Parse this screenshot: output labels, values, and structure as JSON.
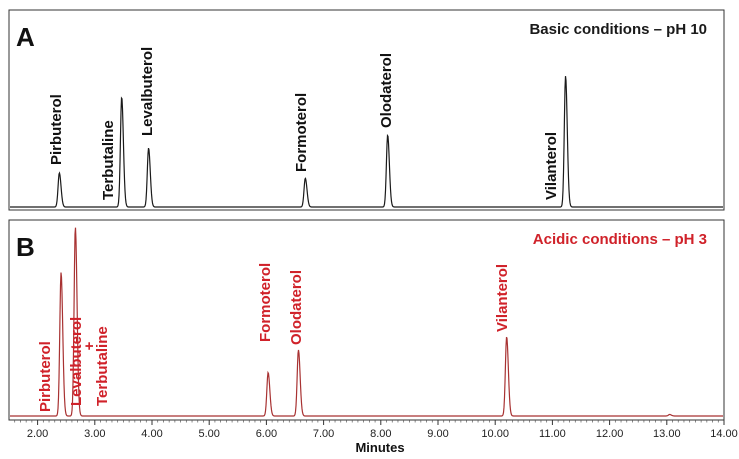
{
  "chart_data": {
    "type": "line",
    "xlabel": "Minutes",
    "xlim": [
      1.5,
      14.0
    ],
    "x_ticks": [
      "2.00",
      "3.00",
      "4.00",
      "5.00",
      "6.00",
      "7.00",
      "8.00",
      "9.00",
      "10.00",
      "11.00",
      "12.00",
      "13.00",
      "14.00"
    ],
    "grid": false,
    "legend": "none",
    "panels": [
      {
        "letter": "A",
        "title": "Basic conditions – pH 10",
        "color": "#1a1a1a",
        "title_color": "#1a1a1a",
        "series": [
          {
            "peaks": [
              {
                "name": "Pirbuterol",
                "x": 2.38,
                "height": 0.26
              },
              {
                "name": "Terbutaline",
                "x": 3.47,
                "height": 0.84
              },
              {
                "name": "Levalbuterol",
                "x": 3.94,
                "height": 0.45
              },
              {
                "name": "Formoterol",
                "x": 6.68,
                "height": 0.22
              },
              {
                "name": "Olodaterol",
                "x": 8.12,
                "height": 0.55
              },
              {
                "name": "Vilanterol",
                "x": 11.23,
                "height": 1.0
              }
            ]
          }
        ]
      },
      {
        "letter": "B",
        "title": "Acidic conditions – pH 3",
        "color": "#a83232",
        "title_color": "#d0222a",
        "series": [
          {
            "peaks": [
              {
                "name": "Pirbuterol",
                "x": 2.41,
                "height": 0.76
              },
              {
                "name": "Levalbuterol + Terbutaline",
                "x": 2.66,
                "height": 1.0
              },
              {
                "name": "Formoterol",
                "x": 6.03,
                "height": 0.23
              },
              {
                "name": "Olodaterol",
                "x": 6.56,
                "height": 0.35
              },
              {
                "name": "Vilanterol",
                "x": 10.2,
                "height": 0.42
              },
              {
                "name": "",
                "x": 13.05,
                "height": 0.008
              }
            ]
          }
        ]
      }
    ],
    "annotations_A": [
      {
        "text": "Pirbuterol"
      },
      {
        "text": "Terbutaline"
      },
      {
        "text": "Levalbuterol"
      },
      {
        "text": "Formoterol"
      },
      {
        "text": "Olodaterol"
      },
      {
        "text": "Vilanterol"
      }
    ],
    "annotations_B": [
      {
        "lines": [
          "Pirbuterol"
        ]
      },
      {
        "lines": [
          "Levalbuterol",
          "+",
          "Terbutaline"
        ]
      },
      {
        "lines": [
          "Formoterol"
        ]
      },
      {
        "lines": [
          "Olodaterol"
        ]
      },
      {
        "lines": [
          "Vilanterol"
        ]
      }
    ]
  }
}
